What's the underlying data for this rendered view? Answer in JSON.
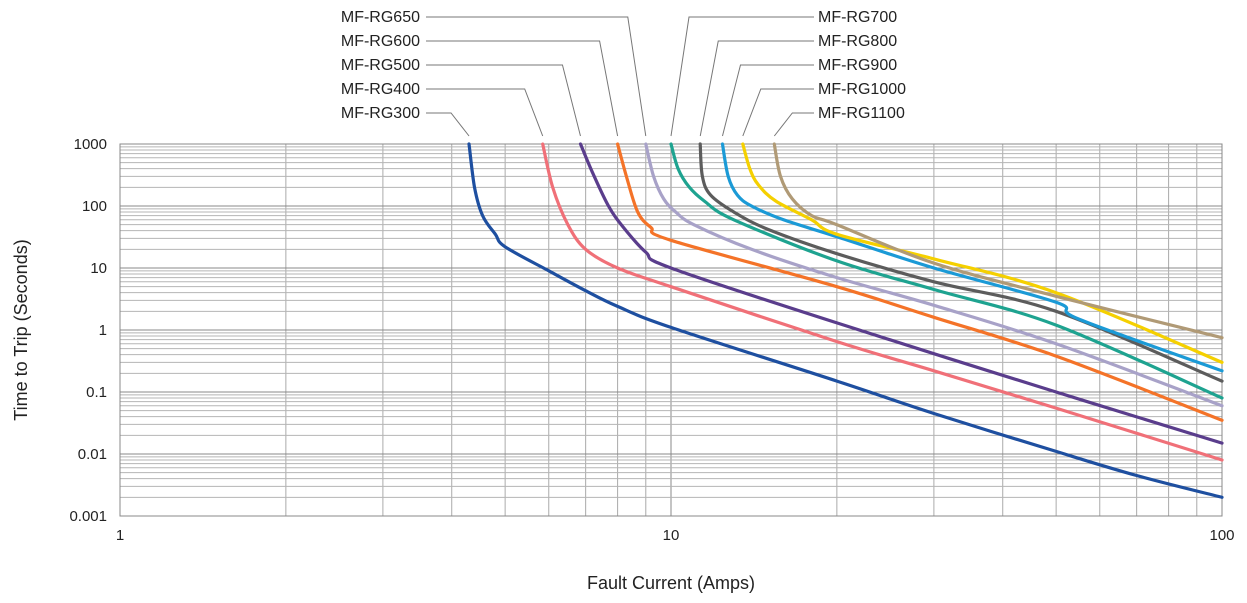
{
  "chart_data": {
    "type": "line",
    "xscale": "log",
    "yscale": "log",
    "xlim": [
      1,
      100
    ],
    "ylim": [
      0.001,
      1000
    ],
    "xlabel": "Fault Current (Amps)",
    "ylabel": "Time to Trip (Seconds)",
    "x_ticks": [
      {
        "value": 1,
        "label": "1"
      },
      {
        "value": 10,
        "label": "10"
      },
      {
        "value": 100,
        "label": "100"
      }
    ],
    "y_ticks": [
      {
        "value": 1000,
        "label": "1000"
      },
      {
        "value": 100,
        "label": "100"
      },
      {
        "value": 10,
        "label": "10"
      },
      {
        "value": 1,
        "label": "1"
      },
      {
        "value": 0.1,
        "label": "0.1"
      },
      {
        "value": 0.01,
        "label": "0.01"
      },
      {
        "value": 0.001,
        "label": "0.001"
      }
    ],
    "grid": true,
    "legend": "callouts above plot",
    "series": [
      {
        "name": "MF-RG300",
        "color": "#1e4fa0",
        "label_side": "left",
        "points": [
          [
            4.3,
            1000
          ],
          [
            4.4,
            200
          ],
          [
            4.55,
            70
          ],
          [
            4.8,
            35
          ],
          [
            5.0,
            22
          ],
          [
            6.0,
            9
          ],
          [
            7.0,
            4.3
          ],
          [
            8.0,
            2.4
          ],
          [
            10,
            1.1
          ],
          [
            20,
            0.15
          ],
          [
            30,
            0.045
          ],
          [
            50,
            0.011
          ],
          [
            70,
            0.0045
          ],
          [
            100,
            0.002
          ]
        ]
      },
      {
        "name": "MF-RG400",
        "color": "#f07078",
        "label_side": "left",
        "points": [
          [
            5.85,
            1000
          ],
          [
            6.1,
            200
          ],
          [
            6.5,
            50
          ],
          [
            7.0,
            20
          ],
          [
            8.0,
            10
          ],
          [
            10,
            5
          ],
          [
            20,
            0.65
          ],
          [
            30,
            0.22
          ],
          [
            50,
            0.055
          ],
          [
            100,
            0.008
          ]
        ]
      },
      {
        "name": "MF-RG500",
        "color": "#5a3d8c",
        "label_side": "left",
        "points": [
          [
            6.85,
            1000
          ],
          [
            7.2,
            350
          ],
          [
            7.7,
            100
          ],
          [
            8.2,
            45
          ],
          [
            9.0,
            18
          ],
          [
            10,
            10
          ],
          [
            20,
            1.3
          ],
          [
            50,
            0.1
          ],
          [
            100,
            0.015
          ]
        ]
      },
      {
        "name": "MF-RG600",
        "color": "#f47328",
        "label_side": "left",
        "points": [
          [
            8.0,
            1000
          ],
          [
            8.3,
            300
          ],
          [
            8.7,
            80
          ],
          [
            9.2,
            45
          ],
          [
            10,
            28
          ],
          [
            20,
            5
          ],
          [
            30,
            1.6
          ],
          [
            50,
            0.38
          ],
          [
            100,
            0.035
          ]
        ]
      },
      {
        "name": "MF-RG650",
        "color": "#a8a2c8",
        "label_side": "left",
        "points": [
          [
            9.0,
            1000
          ],
          [
            9.3,
            300
          ],
          [
            9.7,
            130
          ],
          [
            10.2,
            80
          ],
          [
            11,
            50
          ],
          [
            14,
            20
          ],
          [
            20,
            7
          ],
          [
            30,
            2.5
          ],
          [
            50,
            0.6
          ],
          [
            100,
            0.06
          ]
        ]
      },
      {
        "name": "MF-RG700",
        "color": "#1ea390",
        "label_side": "right",
        "points": [
          [
            10.0,
            1000
          ],
          [
            10.3,
            400
          ],
          [
            10.8,
            200
          ],
          [
            11.5,
            120
          ],
          [
            13,
            60
          ],
          [
            20,
            13
          ],
          [
            30,
            4.5
          ],
          [
            50,
            1.2
          ],
          [
            100,
            0.08
          ]
        ]
      },
      {
        "name": "MF-RG800",
        "color": "#5c5c5c",
        "label_side": "right",
        "points": [
          [
            11.3,
            1000
          ],
          [
            11.4,
            300
          ],
          [
            11.8,
            150
          ],
          [
            13,
            80
          ],
          [
            15,
            42
          ],
          [
            20,
            17
          ],
          [
            30,
            6
          ],
          [
            50,
            2
          ],
          [
            100,
            0.15
          ]
        ]
      },
      {
        "name": "MF-RG900",
        "color": "#1b9ad6",
        "label_side": "right",
        "points": [
          [
            12.4,
            1000
          ],
          [
            12.7,
            300
          ],
          [
            13.2,
            150
          ],
          [
            14,
            100
          ],
          [
            16,
            60
          ],
          [
            20,
            32
          ],
          [
            30,
            10
          ],
          [
            50,
            2.8
          ],
          [
            55,
            1.5
          ],
          [
            100,
            0.22
          ]
        ]
      },
      {
        "name": "MF-RG1000",
        "color": "#f5d000",
        "label_side": "right",
        "points": [
          [
            13.5,
            1000
          ],
          [
            13.9,
            400
          ],
          [
            14.4,
            220
          ],
          [
            15.5,
            120
          ],
          [
            18,
            60
          ],
          [
            20,
            35
          ],
          [
            30,
            14
          ],
          [
            50,
            4
          ],
          [
            100,
            0.3
          ]
        ]
      },
      {
        "name": "MF-RG1100",
        "color": "#b09a76",
        "label_side": "right",
        "points": [
          [
            15.4,
            1000
          ],
          [
            15.8,
            300
          ],
          [
            16.6,
            130
          ],
          [
            18,
            70
          ],
          [
            20,
            50
          ],
          [
            30,
            12
          ],
          [
            50,
            3.5
          ],
          [
            100,
            0.75
          ]
        ]
      }
    ]
  }
}
